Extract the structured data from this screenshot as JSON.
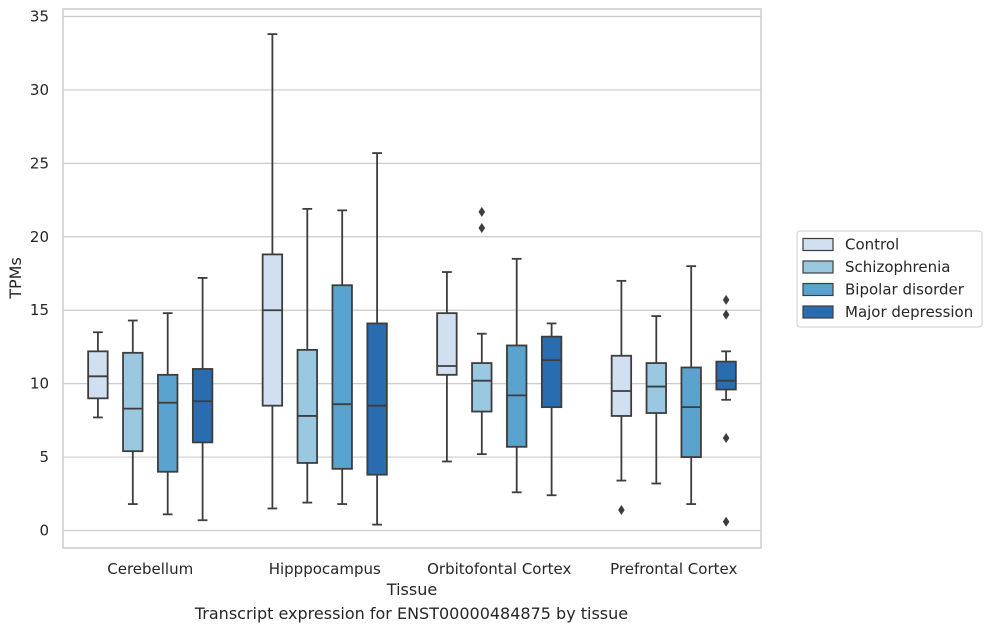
{
  "chart_data": {
    "type": "box",
    "xlabel": "Tissue",
    "ylabel": "TPMs",
    "caption": "Transcript expression for ENST00000484875 by tissue",
    "ylim": [
      -1.2,
      35.5
    ],
    "yticks": [
      0,
      5,
      10,
      15,
      20,
      25,
      30,
      35
    ],
    "grid": "horizontal",
    "legend_position": "right",
    "categories": [
      "Cerebellum",
      "Hipppocampus",
      "Orbitofontal Cortex",
      "Prefrontal Cortex"
    ],
    "series": [
      {
        "name": "Control",
        "color": "#d0e0f1",
        "boxes": [
          {
            "whisker_low": 7.7,
            "q1": 9.0,
            "median": 10.5,
            "q3": 12.2,
            "whisker_high": 13.5,
            "outliers": []
          },
          {
            "whisker_low": 1.5,
            "q1": 8.5,
            "median": 15.0,
            "q3": 18.8,
            "whisker_high": 33.8,
            "outliers": []
          },
          {
            "whisker_low": 4.7,
            "q1": 10.6,
            "median": 11.2,
            "q3": 14.8,
            "whisker_high": 17.6,
            "outliers": []
          },
          {
            "whisker_low": 3.4,
            "q1": 7.8,
            "median": 9.5,
            "q3": 11.9,
            "whisker_high": 17.0,
            "outliers": [
              1.4
            ]
          }
        ]
      },
      {
        "name": "Schizophrenia",
        "color": "#9ac8e0",
        "boxes": [
          {
            "whisker_low": 1.8,
            "q1": 5.4,
            "median": 8.3,
            "q3": 12.1,
            "whisker_high": 14.3,
            "outliers": []
          },
          {
            "whisker_low": 1.9,
            "q1": 4.6,
            "median": 7.8,
            "q3": 12.3,
            "whisker_high": 21.9,
            "outliers": []
          },
          {
            "whisker_low": 5.2,
            "q1": 8.1,
            "median": 10.2,
            "q3": 11.4,
            "whisker_high": 13.4,
            "outliers": [
              20.6,
              21.7
            ]
          },
          {
            "whisker_low": 3.2,
            "q1": 8.0,
            "median": 9.8,
            "q3": 11.4,
            "whisker_high": 14.6,
            "outliers": []
          }
        ]
      },
      {
        "name": "Bipolar disorder",
        "color": "#5ba3cf",
        "boxes": [
          {
            "whisker_low": 1.1,
            "q1": 4.0,
            "median": 8.7,
            "q3": 10.6,
            "whisker_high": 14.8,
            "outliers": []
          },
          {
            "whisker_low": 1.8,
            "q1": 4.2,
            "median": 8.6,
            "q3": 16.7,
            "whisker_high": 21.8,
            "outliers": []
          },
          {
            "whisker_low": 2.6,
            "q1": 5.7,
            "median": 9.2,
            "q3": 12.6,
            "whisker_high": 18.5,
            "outliers": []
          },
          {
            "whisker_low": 1.8,
            "q1": 5.0,
            "median": 8.4,
            "q3": 11.1,
            "whisker_high": 18.0,
            "outliers": []
          }
        ]
      },
      {
        "name": "Major depression",
        "color": "#2a6cb0",
        "boxes": [
          {
            "whisker_low": 0.7,
            "q1": 6.0,
            "median": 8.8,
            "q3": 11.0,
            "whisker_high": 17.2,
            "outliers": []
          },
          {
            "whisker_low": 0.4,
            "q1": 3.8,
            "median": 8.5,
            "q3": 14.1,
            "whisker_high": 25.7,
            "outliers": []
          },
          {
            "whisker_low": 2.4,
            "q1": 8.4,
            "median": 11.6,
            "q3": 13.2,
            "whisker_high": 14.1,
            "outliers": []
          },
          {
            "whisker_low": 8.9,
            "q1": 9.6,
            "median": 10.2,
            "q3": 11.5,
            "whisker_high": 12.2,
            "outliers": [
              0.6,
              6.3,
              14.7,
              15.7
            ]
          }
        ]
      }
    ]
  }
}
